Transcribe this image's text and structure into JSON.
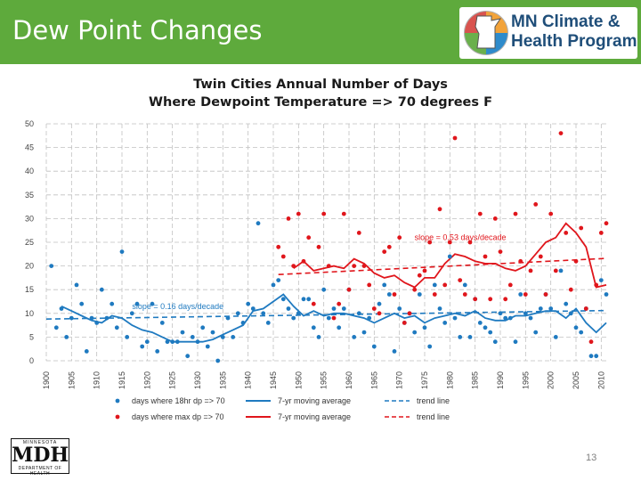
{
  "slide": {
    "title": "Dew Point Changes",
    "page_number": "13",
    "logo_line1": "MN Climate &",
    "logo_line2": "Health Program",
    "mdh_top": "MINNESOTA",
    "mdh_main": "MDH",
    "mdh_bottom": "DEPARTMENT OF HEALTH"
  },
  "colors": {
    "header": "#5eaa3c",
    "blue": "#1f7ac0",
    "red": "#e0161c",
    "grid": "#c0c0c0"
  },
  "chart_data": {
    "type": "scatter",
    "title_line1": "Twin Cities Annual Number of Days",
    "title_line2": "Where Dewpoint Temperature => 70 degrees F",
    "xlim": [
      1900,
      2011
    ],
    "ylim": [
      0,
      50
    ],
    "yticks": [
      0,
      5,
      10,
      15,
      20,
      25,
      30,
      35,
      40,
      45,
      50
    ],
    "xticks": [
      1900,
      1905,
      1910,
      1915,
      1920,
      1925,
      1930,
      1935,
      1940,
      1945,
      1950,
      1955,
      1960,
      1965,
      1970,
      1975,
      1980,
      1985,
      1990,
      1995,
      2000,
      2005,
      2010
    ],
    "annotations": [
      {
        "text": "slope = 0.53 days/decade",
        "x": 1973,
        "y": 25.5,
        "color": "red"
      },
      {
        "text": "slope = 0.16 days/decade",
        "x": 1917,
        "y": 10.9,
        "color": "blue"
      }
    ],
    "series": [
      {
        "name": "days where 18hr dp => 70",
        "kind": "points",
        "color": "blue",
        "x": [
          1901,
          1902,
          1903,
          1904,
          1905,
          1906,
          1907,
          1908,
          1909,
          1910,
          1911,
          1912,
          1913,
          1914,
          1915,
          1916,
          1917,
          1918,
          1919,
          1920,
          1921,
          1922,
          1923,
          1924,
          1925,
          1926,
          1927,
          1928,
          1929,
          1930,
          1931,
          1932,
          1933,
          1934,
          1935,
          1936,
          1937,
          1938,
          1939,
          1940,
          1941,
          1942,
          1943,
          1944,
          1945,
          1946,
          1947,
          1948,
          1949,
          1950,
          1951,
          1952,
          1953,
          1954,
          1955,
          1956,
          1957,
          1958,
          1959,
          1960,
          1961,
          1962,
          1963,
          1964,
          1965,
          1966,
          1967,
          1968,
          1969,
          1970,
          1971,
          1972,
          1973,
          1974,
          1975,
          1976,
          1977,
          1978,
          1979,
          1980,
          1981,
          1982,
          1983,
          1984,
          1985,
          1986,
          1987,
          1988,
          1989,
          1990,
          1991,
          1992,
          1993,
          1994,
          1995,
          1996,
          1997,
          1998,
          1999,
          2000,
          2001,
          2002,
          2003,
          2004,
          2005,
          2006,
          2007,
          2008,
          2009,
          2010,
          2011
        ],
        "y": [
          20,
          7,
          11,
          5,
          9,
          16,
          12,
          2,
          9,
          8,
          15,
          9,
          12,
          7,
          23,
          5,
          10,
          12,
          3,
          4,
          12,
          2,
          8,
          4,
          4,
          4,
          6,
          1,
          5,
          4,
          7,
          3,
          6,
          0,
          5,
          9,
          5,
          10,
          8,
          12,
          11,
          29,
          10,
          8,
          16,
          17,
          13,
          11,
          9,
          10,
          13,
          13,
          7,
          5,
          15,
          9,
          11,
          7,
          11,
          15,
          5,
          10,
          6,
          9,
          3,
          12,
          16,
          14,
          2,
          11,
          8,
          10,
          6,
          14,
          7,
          3,
          16,
          11,
          8,
          22,
          9,
          5,
          16,
          5,
          13,
          8,
          7,
          6,
          4,
          10,
          9,
          9,
          4,
          14,
          10,
          9,
          6,
          11,
          14,
          11,
          5,
          19,
          12,
          10,
          7,
          6,
          11,
          1,
          1,
          17,
          14
        ]
      },
      {
        "name": "days where max dp => 70",
        "kind": "points",
        "color": "red",
        "x": [
          1946,
          1947,
          1948,
          1949,
          1950,
          1951,
          1952,
          1953,
          1954,
          1955,
          1956,
          1957,
          1958,
          1959,
          1960,
          1961,
          1962,
          1963,
          1964,
          1965,
          1966,
          1967,
          1968,
          1969,
          1970,
          1971,
          1972,
          1973,
          1974,
          1975,
          1976,
          1977,
          1978,
          1979,
          1980,
          1981,
          1982,
          1983,
          1984,
          1985,
          1986,
          1987,
          1988,
          1989,
          1990,
          1991,
          1992,
          1993,
          1994,
          1995,
          1996,
          1997,
          1998,
          1999,
          2000,
          2001,
          2002,
          2003,
          2004,
          2005,
          2006,
          2007,
          2008,
          2009,
          2010,
          2011
        ],
        "y": [
          24,
          22,
          30,
          20,
          31,
          21,
          26,
          12,
          24,
          31,
          20,
          9,
          12,
          31,
          15,
          20,
          27,
          20,
          16,
          11,
          10,
          23,
          24,
          14,
          26,
          8,
          10,
          15,
          18,
          19,
          25,
          14,
          32,
          16,
          25,
          47,
          17,
          14,
          25,
          13,
          31,
          22,
          13,
          30,
          23,
          13,
          16,
          31,
          21,
          14,
          19,
          33,
          22,
          14,
          31,
          19,
          48,
          27,
          15,
          21,
          28,
          11,
          4,
          16,
          27,
          29
        ]
      },
      {
        "name": "7-yr moving average",
        "kind": "line",
        "color": "blue",
        "x": [
          1903,
          1905,
          1907,
          1909,
          1911,
          1913,
          1915,
          1917,
          1919,
          1921,
          1923,
          1925,
          1927,
          1929,
          1931,
          1933,
          1935,
          1937,
          1939,
          1941,
          1943,
          1945,
          1947,
          1949,
          1951,
          1953,
          1955,
          1957,
          1959,
          1961,
          1963,
          1965,
          1967,
          1969,
          1971,
          1973,
          1975,
          1977,
          1979,
          1981,
          1983,
          1985,
          1987,
          1989,
          1991,
          1993,
          1995,
          1997,
          1999,
          2001,
          2003,
          2005,
          2007,
          2009,
          2011
        ],
        "y": [
          11.5,
          10.5,
          9.5,
          8.5,
          8.0,
          9.5,
          9.0,
          7.5,
          6.5,
          6.0,
          5.0,
          4.0,
          4.0,
          4.0,
          4.0,
          4.5,
          5.5,
          6.5,
          7.5,
          10.5,
          11.0,
          12.5,
          14.0,
          11.5,
          9.5,
          10.5,
          9.5,
          10.0,
          10.0,
          9.5,
          9.0,
          8.0,
          9.0,
          10.0,
          9.0,
          9.5,
          8.0,
          9.0,
          9.5,
          10.0,
          9.5,
          10.5,
          9.0,
          8.5,
          8.5,
          9.5,
          9.5,
          10.0,
          10.5,
          10.5,
          9.0,
          11.0,
          8.0,
          6.0,
          8.0
        ]
      },
      {
        "name": "7-yr moving average",
        "kind": "line",
        "color": "red",
        "x": [
          1949,
          1951,
          1953,
          1955,
          1957,
          1959,
          1961,
          1963,
          1965,
          1967,
          1969,
          1971,
          1973,
          1975,
          1977,
          1979,
          1981,
          1983,
          1985,
          1987,
          1989,
          1991,
          1993,
          1995,
          1997,
          1999,
          2001,
          2003,
          2005,
          2007,
          2009,
          2011
        ],
        "y": [
          19.5,
          21.0,
          19.0,
          19.5,
          20.0,
          19.5,
          21.5,
          20.5,
          18.5,
          17.5,
          18.0,
          16.5,
          15.5,
          17.5,
          17.5,
          20.5,
          22.5,
          22.0,
          21.0,
          20.5,
          20.5,
          19.5,
          19.0,
          20.0,
          22.5,
          25.0,
          26.0,
          29.0,
          27.0,
          24.0,
          15.5,
          16.0
        ]
      },
      {
        "name": "trend line",
        "kind": "trend",
        "color": "blue",
        "x": [
          1900,
          2011
        ],
        "y": [
          8.8,
          10.6
        ]
      },
      {
        "name": "trend line",
        "kind": "trend",
        "color": "red",
        "x": [
          1946,
          2011
        ],
        "y": [
          18.2,
          21.6
        ]
      }
    ],
    "legend": [
      {
        "label": "days where 18hr dp => 70",
        "symbol": "dot",
        "color": "blue"
      },
      {
        "label": "7-yr moving average",
        "symbol": "line",
        "color": "blue"
      },
      {
        "label": "trend line",
        "symbol": "dash",
        "color": "blue"
      },
      {
        "label": "days where max dp => 70",
        "symbol": "dot",
        "color": "red"
      },
      {
        "label": "7-yr moving average",
        "symbol": "line",
        "color": "red"
      },
      {
        "label": "trend line",
        "symbol": "dash",
        "color": "red"
      }
    ]
  }
}
